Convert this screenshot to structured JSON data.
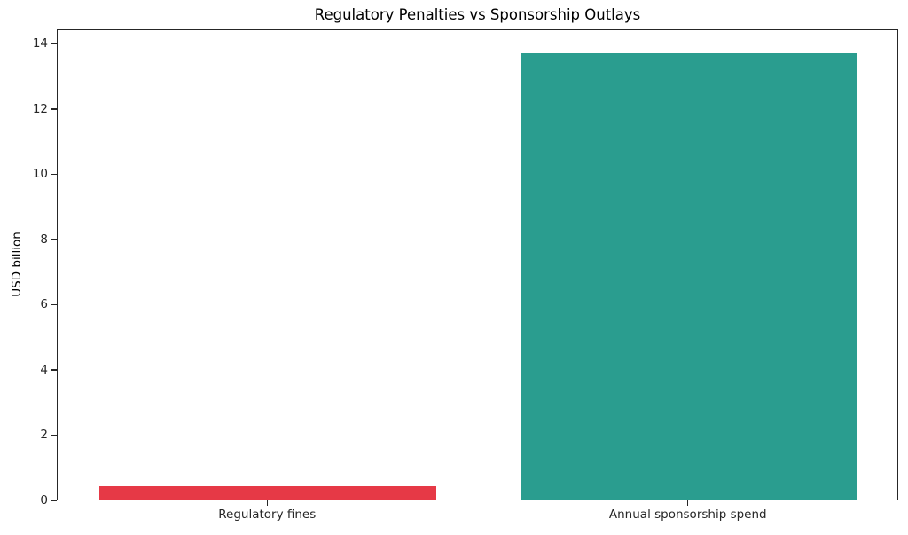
{
  "chart_data": {
    "type": "bar",
    "title": "Regulatory Penalties vs Sponsorship Outlays",
    "xlabel": "",
    "ylabel": "USD billion",
    "categories": [
      "Regulatory fines",
      "Annual sponsorship spend"
    ],
    "values": [
      0.4,
      13.7
    ],
    "bar_colors": [
      "#e63946",
      "#2a9d8f"
    ],
    "bar_width_fraction": 0.8,
    "yticks": [
      0,
      2,
      4,
      6,
      8,
      10,
      12,
      14
    ],
    "ylim": [
      0,
      14.45
    ],
    "grid": false,
    "legend": null,
    "background_color": "#ffffff",
    "spine_color": "#262626",
    "text_color": "#000000"
  }
}
